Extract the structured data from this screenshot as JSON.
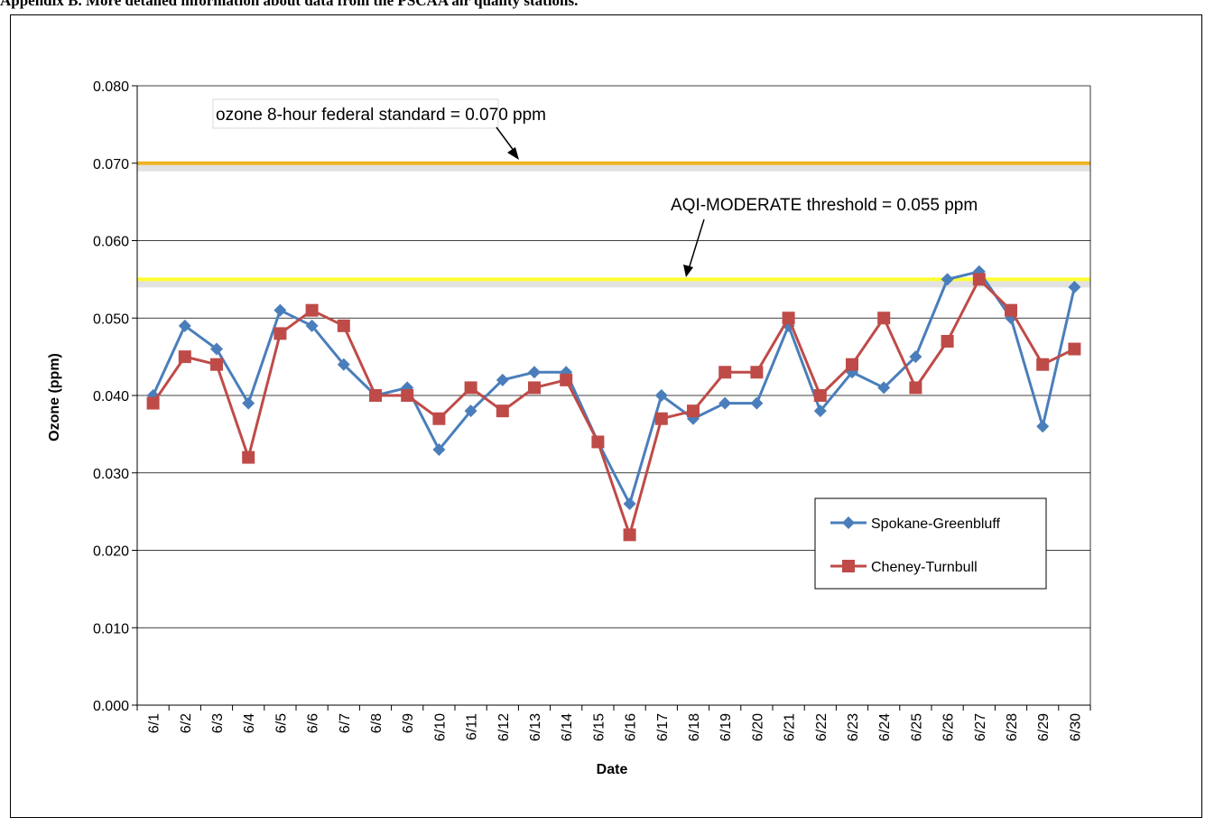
{
  "header": {
    "text": "Appendix B. More detailed information about data from the PSCAA air quality stations."
  },
  "chart_data": {
    "type": "line",
    "xlabel": "Date",
    "ylabel": "Ozone (ppm)",
    "ylim": [
      0,
      0.08
    ],
    "yticks": [
      "0.000",
      "0.010",
      "0.020",
      "0.030",
      "0.040",
      "0.050",
      "0.060",
      "0.070",
      "0.080"
    ],
    "grid": true,
    "legend_position": "lower-right",
    "categories": [
      "6/1",
      "6/2",
      "6/3",
      "6/4",
      "6/5",
      "6/6",
      "6/7",
      "6/8",
      "6/9",
      "6/10",
      "6/11",
      "6/12",
      "6/13",
      "6/14",
      "6/15",
      "6/16",
      "6/17",
      "6/18",
      "6/19",
      "6/20",
      "6/21",
      "6/22",
      "6/23",
      "6/24",
      "6/25",
      "6/26",
      "6/27",
      "6/28",
      "6/29",
      "6/30"
    ],
    "series": [
      {
        "name": "Spokane-Greenbluff",
        "color": "#4a7ebb",
        "marker": "diamond",
        "values": [
          0.04,
          0.049,
          0.046,
          0.039,
          0.051,
          0.049,
          0.044,
          0.04,
          0.041,
          0.033,
          0.038,
          0.042,
          0.043,
          0.043,
          0.034,
          0.026,
          0.04,
          0.037,
          0.039,
          0.039,
          0.049,
          0.038,
          0.043,
          0.041,
          0.045,
          0.055,
          0.056,
          0.05,
          0.036,
          0.054
        ]
      },
      {
        "name": "Cheney-Turnbull",
        "color": "#be4b48",
        "marker": "square",
        "values": [
          0.039,
          0.045,
          0.044,
          0.032,
          0.048,
          0.051,
          0.049,
          0.04,
          0.04,
          0.037,
          0.041,
          0.038,
          0.041,
          0.042,
          0.034,
          0.022,
          0.037,
          0.038,
          0.043,
          0.043,
          0.05,
          0.04,
          0.044,
          0.05,
          0.041,
          0.047,
          0.055,
          0.051,
          0.044,
          0.046
        ]
      }
    ],
    "reference_lines": [
      {
        "value": 0.07,
        "color": "#f0b323",
        "label": "ozone 8-hour federal standard = 0.070 ppm"
      },
      {
        "value": 0.055,
        "color": "#ffff33",
        "label": "AQI-MODERATE threshold = 0.055 ppm"
      }
    ]
  }
}
